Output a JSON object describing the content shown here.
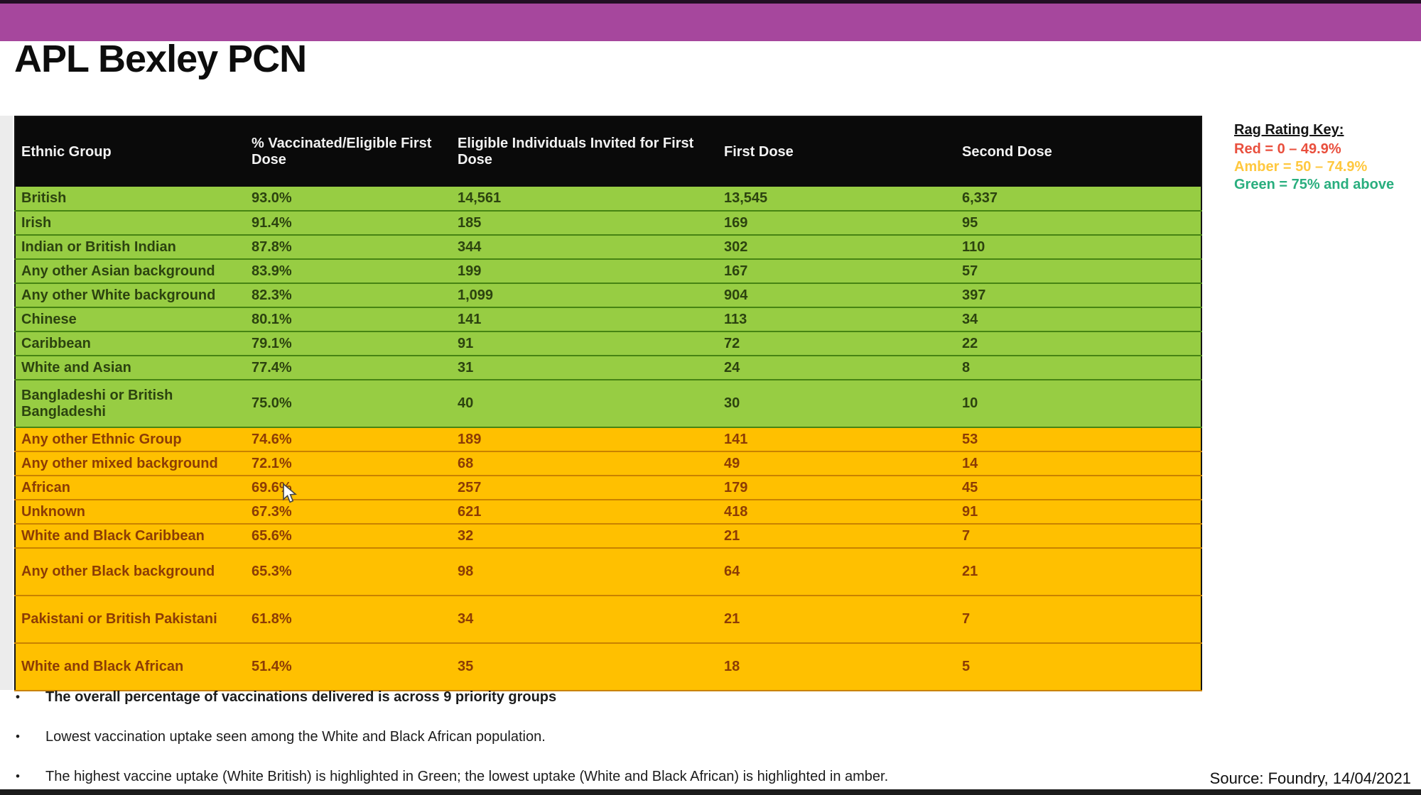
{
  "header": {
    "title": "APL Bexley PCN"
  },
  "table": {
    "columns": [
      {
        "label": "Ethnic Group"
      },
      {
        "label": "% Vaccinated/Eligible First Dose"
      },
      {
        "label": "Eligible Individuals Invited for First Dose"
      },
      {
        "label": "First Dose"
      },
      {
        "label": "Second Dose"
      }
    ],
    "rows": [
      {
        "ethnic_group": "British",
        "pct_vaccinated": "93.0%",
        "invited": "14,561",
        "first_dose": "13,545",
        "second_dose": "6,337",
        "rag": "green",
        "tall": false
      },
      {
        "ethnic_group": "Irish",
        "pct_vaccinated": "91.4%",
        "invited": "185",
        "first_dose": "169",
        "second_dose": "95",
        "rag": "green",
        "tall": false
      },
      {
        "ethnic_group": "Indian or British Indian",
        "pct_vaccinated": "87.8%",
        "invited": "344",
        "first_dose": "302",
        "second_dose": "110",
        "rag": "green",
        "tall": false
      },
      {
        "ethnic_group": "Any other Asian background",
        "pct_vaccinated": "83.9%",
        "invited": "199",
        "first_dose": "167",
        "second_dose": "57",
        "rag": "green",
        "tall": false
      },
      {
        "ethnic_group": "Any other White background",
        "pct_vaccinated": "82.3%",
        "invited": "1,099",
        "first_dose": "904",
        "second_dose": "397",
        "rag": "green",
        "tall": false
      },
      {
        "ethnic_group": "Chinese",
        "pct_vaccinated": "80.1%",
        "invited": "141",
        "first_dose": "113",
        "second_dose": "34",
        "rag": "green",
        "tall": false
      },
      {
        "ethnic_group": "Caribbean",
        "pct_vaccinated": "79.1%",
        "invited": "91",
        "first_dose": "72",
        "second_dose": "22",
        "rag": "green",
        "tall": false
      },
      {
        "ethnic_group": "White and Asian",
        "pct_vaccinated": "77.4%",
        "invited": "31",
        "first_dose": "24",
        "second_dose": "8",
        "rag": "green",
        "tall": false
      },
      {
        "ethnic_group": "Bangladeshi or British Bangladeshi",
        "pct_vaccinated": "75.0%",
        "invited": "40",
        "first_dose": "30",
        "second_dose": "10",
        "rag": "green",
        "tall": true
      },
      {
        "ethnic_group": "Any other Ethnic Group",
        "pct_vaccinated": "74.6%",
        "invited": "189",
        "first_dose": "141",
        "second_dose": "53",
        "rag": "amber",
        "tall": false
      },
      {
        "ethnic_group": "Any other mixed background",
        "pct_vaccinated": "72.1%",
        "invited": "68",
        "first_dose": "49",
        "second_dose": "14",
        "rag": "amber",
        "tall": false
      },
      {
        "ethnic_group": "African",
        "pct_vaccinated": "69.6%",
        "invited": "257",
        "first_dose": "179",
        "second_dose": "45",
        "rag": "amber",
        "tall": false
      },
      {
        "ethnic_group": "Unknown",
        "pct_vaccinated": "67.3%",
        "invited": "621",
        "first_dose": "418",
        "second_dose": "91",
        "rag": "amber",
        "tall": false
      },
      {
        "ethnic_group": "White and Black Caribbean",
        "pct_vaccinated": "65.6%",
        "invited": "32",
        "first_dose": "21",
        "second_dose": "7",
        "rag": "amber",
        "tall": false
      },
      {
        "ethnic_group": "Any other Black background",
        "pct_vaccinated": "65.3%",
        "invited": "98",
        "first_dose": "64",
        "second_dose": "21",
        "rag": "amber",
        "tall": true
      },
      {
        "ethnic_group": "Pakistani or British Pakistani",
        "pct_vaccinated": "61.8%",
        "invited": "34",
        "first_dose": "21",
        "second_dose": "7",
        "rag": "amber",
        "tall": true
      },
      {
        "ethnic_group": "White and Black African",
        "pct_vaccinated": "51.4%",
        "invited": "35",
        "first_dose": "18",
        "second_dose": "5",
        "rag": "amber",
        "tall": true
      }
    ]
  },
  "rag_key": {
    "title": "Rag Rating Key:",
    "entries": [
      {
        "label": "Red = 0 – 49.9%",
        "color": "#E94F3D"
      },
      {
        "label": "Amber = 50 – 74.9%",
        "color": "#FFC83F"
      },
      {
        "label": "Green = 75% and above",
        "color": "#29AE7E"
      }
    ]
  },
  "bullets": [
    {
      "text": "The overall percentage of vaccinations delivered is across 9 priority groups",
      "bold": true
    },
    {
      "text": "Lowest vaccination uptake seen among the White and Black African population.",
      "bold": false
    },
    {
      "text": "The highest vaccine uptake (White British) is highlighted in Green; the lowest uptake (White and Black African) is highlighted in amber.",
      "bold": false
    }
  ],
  "footer": {
    "source": "Source: Foundry, 14/04/2021"
  },
  "colors": {
    "top_bar": "#A6479D",
    "header_bg": "#0a0a0a",
    "green_row_bg": "#97CD43",
    "amber_row_bg": "#FFC000",
    "bottom_bar": "#1c1c1c"
  }
}
